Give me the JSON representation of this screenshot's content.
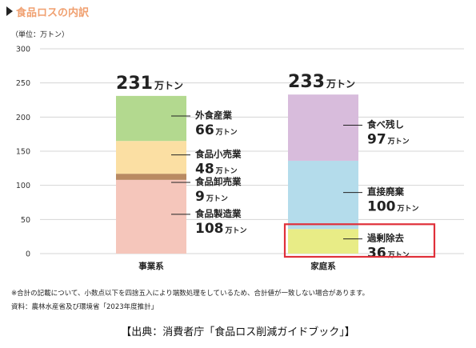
{
  "title": "食品ロスの内訳",
  "unit_label": "（単位：万トン）",
  "notes": [
    "※合計の記載について、小数点以下を四捨五入により端数処理をしているため、合計値が一致しない場合があります。",
    "資料：農林水産省及び環境省「2023年度推計」"
  ],
  "source": "【出典：消費者庁「食品ロス削減ガイドブック」】",
  "chart_data": {
    "type": "bar",
    "stacked": true,
    "ylim": [
      0,
      300
    ],
    "yticks": [
      0,
      50,
      100,
      150,
      200,
      250,
      300
    ],
    "grid": true,
    "unit_suffix": "万トン",
    "categories": [
      "事業系",
      "家庭系"
    ],
    "totals": [
      231,
      233
    ],
    "stacks": [
      {
        "category": "事業系",
        "segments": [
          {
            "name": "食品製造業",
            "value": 108,
            "color": "#f5c6bb"
          },
          {
            "name": "食品卸売業",
            "value": 9,
            "color": "#b98a62"
          },
          {
            "name": "食品小売業",
            "value": 48,
            "color": "#fbdfa3"
          },
          {
            "name": "外食産業",
            "value": 66,
            "color": "#b3d98f"
          }
        ]
      },
      {
        "category": "家庭系",
        "segments": [
          {
            "name": "過剰除去",
            "value": 36,
            "color": "#e8ec86"
          },
          {
            "name": "直接廃棄",
            "value": 100,
            "color": "#b4dceb"
          },
          {
            "name": "食べ残し",
            "value": 97,
            "color": "#d8bcdc"
          }
        ]
      }
    ],
    "highlight": {
      "category": "家庭系",
      "segment": "過剰除去",
      "color": "#e0303a"
    }
  }
}
